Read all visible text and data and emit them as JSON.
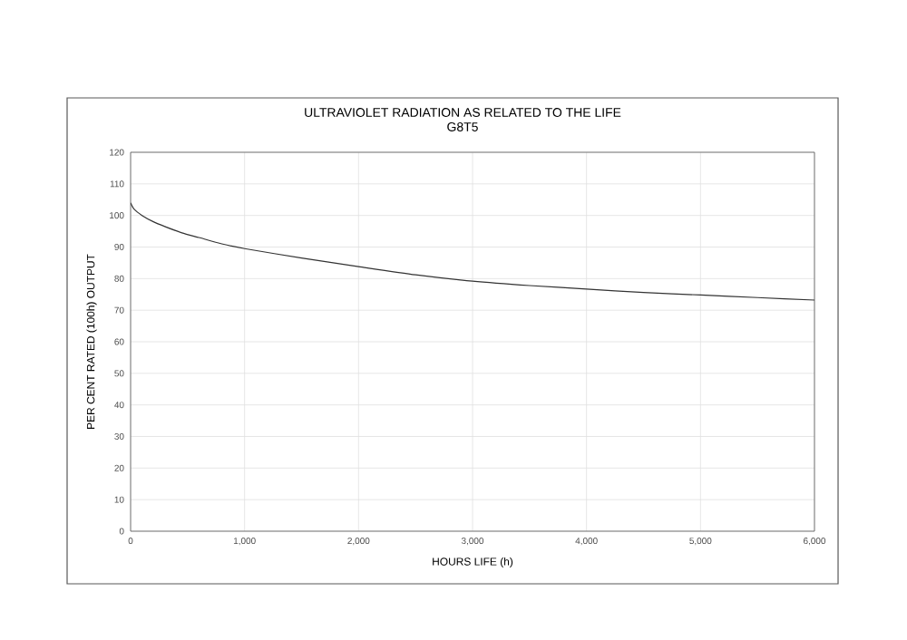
{
  "chart_data": {
    "type": "line",
    "title": "ULTRAVIOLET RADIATION AS RELATED TO THE LIFE",
    "subtitle": "G8T5",
    "xlabel": "HOURS LIFE (h)",
    "ylabel": "PER CENT RATED (100h) OUTPUT",
    "x": [
      0,
      30,
      100,
      200,
      300,
      450,
      600,
      800,
      1000,
      1500,
      2000,
      2500,
      3000,
      3500,
      4000,
      4500,
      5000,
      5500,
      6000
    ],
    "series": [
      {
        "color": "#333333",
        "values": [
          104,
          102,
          100,
          98,
          96.5,
          94.5,
          93,
          91,
          89.5,
          86.5,
          83.8,
          81.2,
          79.2,
          77.8,
          76.7,
          75.6,
          74.8,
          74,
          73.2
        ]
      }
    ],
    "xlim": [
      0,
      6000
    ],
    "ylim": [
      0,
      120
    ],
    "xticks": [
      0,
      {
        "value": 1000,
        "label": "1,000"
      },
      {
        "value": 2000,
        "label": "2,000"
      },
      {
        "value": 3000,
        "label": "3,000"
      },
      {
        "value": 4000,
        "label": "4,000"
      },
      {
        "value": 5000,
        "label": "5,000"
      },
      {
        "value": 6000,
        "label": "6,000"
      }
    ],
    "yticks": [
      0,
      10,
      20,
      30,
      40,
      50,
      60,
      70,
      80,
      90,
      100,
      110,
      120
    ],
    "grid": true,
    "marker": "none",
    "line_style": "solid"
  }
}
